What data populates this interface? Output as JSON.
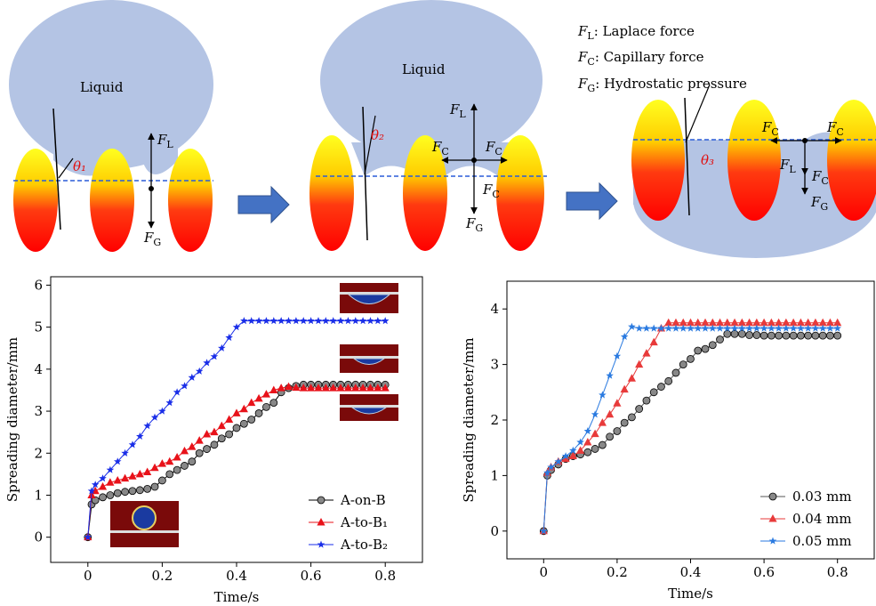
{
  "diagram": {
    "panels": [
      {
        "liquid": "Liquid",
        "angle": "θ₁",
        "forces": [
          {
            "symbol": "F",
            "sub": "L"
          },
          {
            "symbol": "F",
            "sub": "G"
          }
        ]
      },
      {
        "liquid": "Liquid",
        "angle": "θ₂",
        "forces": [
          {
            "symbol": "F",
            "sub": "L"
          },
          {
            "symbol": "F",
            "sub": "C"
          },
          {
            "symbol": "F",
            "sub": "C"
          },
          {
            "symbol": "F",
            "sub": "C"
          },
          {
            "symbol": "F",
            "sub": "G"
          }
        ]
      },
      {
        "angle": "θ₃",
        "forces": [
          {
            "symbol": "F",
            "sub": "C"
          },
          {
            "symbol": "F",
            "sub": "C"
          },
          {
            "symbol": "F",
            "sub": "L"
          },
          {
            "symbol": "F",
            "sub": "C"
          },
          {
            "symbol": "F",
            "sub": "G"
          }
        ]
      }
    ],
    "legend": [
      {
        "symbol": "F",
        "sub": "L",
        "text": ": Laplace force"
      },
      {
        "symbol": "F",
        "sub": "C",
        "text": ": Capillary force"
      },
      {
        "symbol": "F",
        "sub": "G",
        "text": ": Hydrostatic pressure"
      }
    ]
  },
  "chart_data": [
    {
      "type": "line",
      "xlabel": "Time/s",
      "ylabel": "Spreading diameter/mm",
      "x": [
        0,
        0.01,
        0.02,
        0.04,
        0.06,
        0.08,
        0.1,
        0.12,
        0.14,
        0.16,
        0.18,
        0.2,
        0.22,
        0.24,
        0.26,
        0.28,
        0.3,
        0.32,
        0.34,
        0.36,
        0.38,
        0.4,
        0.42,
        0.44,
        0.46,
        0.48,
        0.5,
        0.52,
        0.54,
        0.56,
        0.58,
        0.6,
        0.62,
        0.64,
        0.66,
        0.68,
        0.7,
        0.72,
        0.74,
        0.76,
        0.78,
        0.8
      ],
      "xlim": [
        -0.1,
        0.9
      ],
      "xticks": [
        0,
        0.2,
        0.4,
        0.6,
        0.8
      ],
      "ylim": [
        -0.6,
        6.2
      ],
      "yticks": [
        0,
        1,
        2,
        3,
        4,
        5,
        6
      ],
      "legend": "lower right",
      "series": [
        {
          "name": "A-on-B",
          "color": "#000000",
          "marker": "circle",
          "values": [
            0,
            0.78,
            0.88,
            0.95,
            1.0,
            1.05,
            1.08,
            1.1,
            1.12,
            1.15,
            1.2,
            1.35,
            1.5,
            1.6,
            1.7,
            1.8,
            2.0,
            2.1,
            2.2,
            2.35,
            2.45,
            2.6,
            2.7,
            2.8,
            2.95,
            3.1,
            3.2,
            3.45,
            3.55,
            3.6,
            3.63,
            3.63,
            3.63,
            3.63,
            3.63,
            3.63,
            3.63,
            3.63,
            3.63,
            3.63,
            3.63,
            3.63
          ]
        },
        {
          "name": "A-to-B₁",
          "color": "#e8121a",
          "marker": "triangle",
          "values": [
            0,
            1.0,
            1.1,
            1.2,
            1.3,
            1.35,
            1.4,
            1.45,
            1.5,
            1.55,
            1.65,
            1.75,
            1.8,
            1.9,
            2.05,
            2.15,
            2.3,
            2.45,
            2.5,
            2.65,
            2.8,
            2.95,
            3.05,
            3.2,
            3.3,
            3.4,
            3.5,
            3.55,
            3.58,
            3.56,
            3.55,
            3.55,
            3.55,
            3.55,
            3.55,
            3.55,
            3.55,
            3.55,
            3.55,
            3.55,
            3.55,
            3.55
          ]
        },
        {
          "name": "A-to-B₂",
          "color": "#1a2ee8",
          "marker": "star",
          "values": [
            0,
            1.1,
            1.25,
            1.4,
            1.6,
            1.8,
            2.0,
            2.2,
            2.4,
            2.65,
            2.85,
            3.0,
            3.2,
            3.45,
            3.6,
            3.8,
            3.95,
            4.15,
            4.3,
            4.5,
            4.75,
            5.0,
            5.15,
            5.15,
            5.15,
            5.15,
            5.15,
            5.15,
            5.15,
            5.15,
            5.15,
            5.15,
            5.15,
            5.15,
            5.15,
            5.15,
            5.15,
            5.15,
            5.15,
            5.15,
            5.15,
            5.15
          ]
        }
      ]
    },
    {
      "type": "line",
      "xlabel": "Time/s",
      "ylabel": "Spreading diameter/mm",
      "x": [
        0,
        0.01,
        0.02,
        0.04,
        0.06,
        0.08,
        0.1,
        0.12,
        0.14,
        0.16,
        0.18,
        0.2,
        0.22,
        0.24,
        0.26,
        0.28,
        0.3,
        0.32,
        0.34,
        0.36,
        0.38,
        0.4,
        0.42,
        0.44,
        0.46,
        0.48,
        0.5,
        0.52,
        0.54,
        0.56,
        0.58,
        0.6,
        0.62,
        0.64,
        0.66,
        0.68,
        0.7,
        0.72,
        0.74,
        0.76,
        0.78,
        0.8
      ],
      "xlim": [
        -0.1,
        0.9
      ],
      "xticks": [
        0,
        0.2,
        0.4,
        0.6,
        0.8
      ],
      "ylim": [
        -0.5,
        4.5
      ],
      "yticks": [
        0,
        1,
        2,
        3,
        4
      ],
      "legend": "lower right",
      "series": [
        {
          "name": "0.03 mm",
          "color": "#555555",
          "marker": "circle",
          "values": [
            0,
            1.0,
            1.1,
            1.2,
            1.3,
            1.35,
            1.38,
            1.42,
            1.48,
            1.55,
            1.7,
            1.8,
            1.95,
            2.05,
            2.2,
            2.35,
            2.5,
            2.6,
            2.7,
            2.85,
            3.0,
            3.1,
            3.25,
            3.28,
            3.35,
            3.45,
            3.55,
            3.55,
            3.55,
            3.53,
            3.53,
            3.52,
            3.52,
            3.52,
            3.52,
            3.52,
            3.52,
            3.52,
            3.52,
            3.52,
            3.52,
            3.52
          ]
        },
        {
          "name": "0.04 mm",
          "color": "#e83a3a",
          "marker": "triangle",
          "values": [
            0,
            1.05,
            1.15,
            1.25,
            1.3,
            1.35,
            1.45,
            1.6,
            1.75,
            1.95,
            2.1,
            2.3,
            2.55,
            2.75,
            3.0,
            3.2,
            3.4,
            3.65,
            3.75,
            3.75,
            3.75,
            3.75,
            3.75,
            3.75,
            3.75,
            3.75,
            3.75,
            3.75,
            3.75,
            3.75,
            3.75,
            3.75,
            3.75,
            3.75,
            3.75,
            3.75,
            3.75,
            3.75,
            3.75,
            3.75,
            3.75,
            3.75
          ]
        },
        {
          "name": "0.05 mm",
          "color": "#2a7ae0",
          "marker": "star",
          "values": [
            0,
            1.05,
            1.15,
            1.25,
            1.35,
            1.45,
            1.6,
            1.8,
            2.1,
            2.45,
            2.8,
            3.15,
            3.5,
            3.68,
            3.65,
            3.65,
            3.65,
            3.65,
            3.65,
            3.65,
            3.65,
            3.65,
            3.65,
            3.65,
            3.65,
            3.65,
            3.65,
            3.65,
            3.65,
            3.65,
            3.65,
            3.65,
            3.65,
            3.65,
            3.65,
            3.65,
            3.65,
            3.65,
            3.65,
            3.65,
            3.65,
            3.65
          ]
        }
      ]
    }
  ]
}
